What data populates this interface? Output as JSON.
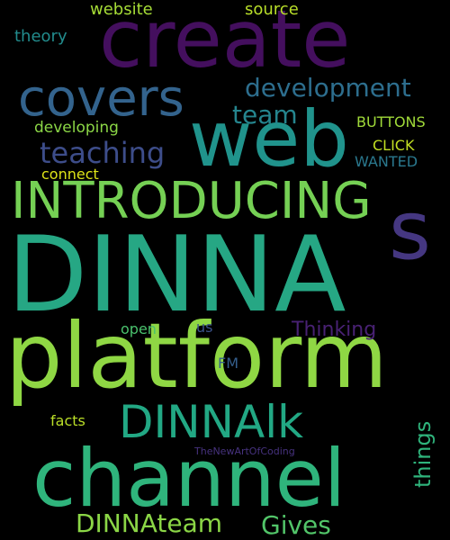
{
  "words": [
    {
      "text": "DINNA",
      "color": "#26a784"
    },
    {
      "text": "platform",
      "color": "#8fd744"
    },
    {
      "text": "channel",
      "color": "#2fb47c"
    },
    {
      "text": "create",
      "color": "#440f5e"
    },
    {
      "text": "web",
      "color": "#20938c"
    },
    {
      "text": "INTRODUCING",
      "color": "#75d054"
    },
    {
      "text": "s",
      "color": "#453781"
    },
    {
      "text": "covers",
      "color": "#33638d"
    },
    {
      "text": "DINNAlk",
      "color": "#22a884"
    },
    {
      "text": "teaching",
      "color": "#3d4d8a"
    },
    {
      "text": "development",
      "color": "#2d6e8e"
    },
    {
      "text": "team",
      "color": "#25858e"
    },
    {
      "text": "things",
      "color": "#2fb47c"
    },
    {
      "text": "DINNAteam",
      "color": "#8bd646"
    },
    {
      "text": "Gives",
      "color": "#52c569"
    },
    {
      "text": "Thinking",
      "color": "#482173"
    },
    {
      "text": "website",
      "color": "#a5db36"
    },
    {
      "text": "source",
      "color": "#b8de29"
    },
    {
      "text": "theory",
      "color": "#228c8d"
    },
    {
      "text": "BUTTONS",
      "color": "#a0da39"
    },
    {
      "text": "developing",
      "color": "#8bd646"
    },
    {
      "text": "CLICK",
      "color": "#c2df23"
    },
    {
      "text": "connect",
      "color": "#dde318"
    },
    {
      "text": "WANTED",
      "color": "#2a788e"
    },
    {
      "text": "open",
      "color": "#4ac16d"
    },
    {
      "text": "us",
      "color": "#3b528b"
    },
    {
      "text": "FM",
      "color": "#355f8d"
    },
    {
      "text": "facts",
      "color": "#bade28"
    },
    {
      "text": "TheNewArtOfCoding",
      "color": "#46327e"
    }
  ]
}
